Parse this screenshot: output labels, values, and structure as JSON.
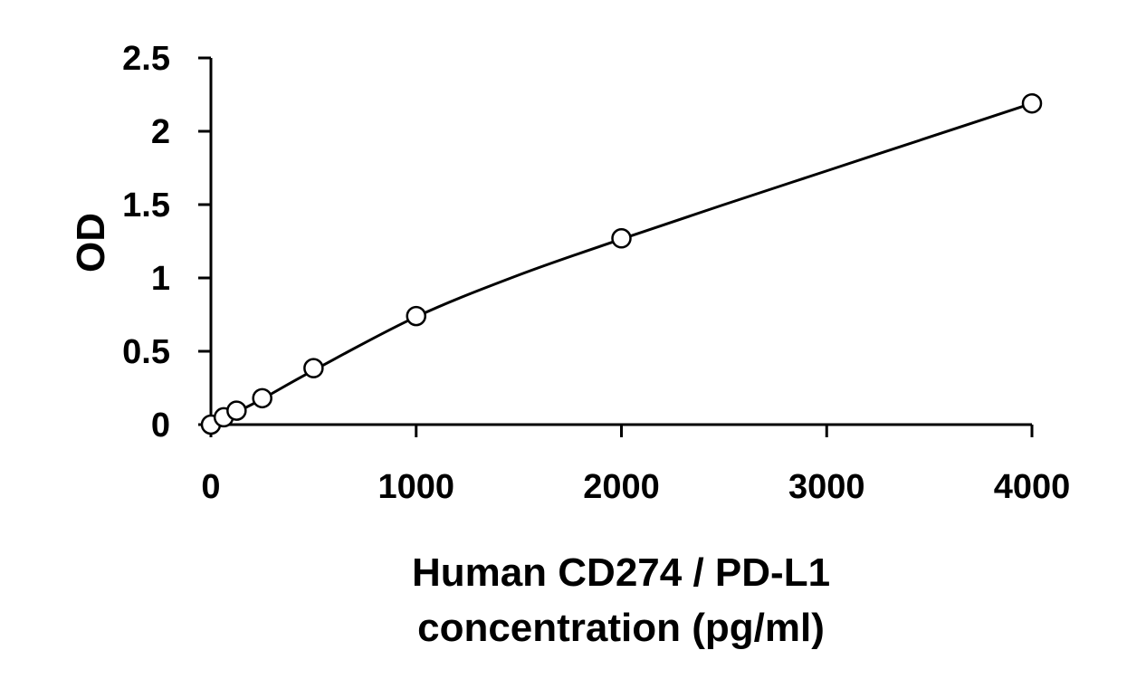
{
  "chart_data": {
    "type": "scatter",
    "title": "",
    "xlabel_lines": [
      "Human CD274 / PD-L1",
      "concentration (pg/ml)"
    ],
    "ylabel": "OD",
    "xlim": [
      0,
      4000
    ],
    "ylim": [
      0,
      2.5
    ],
    "xticks": [
      0,
      1000,
      2000,
      3000,
      4000
    ],
    "xtick_labels": [
      "0",
      "1000",
      "2000",
      "3000",
      "4000"
    ],
    "yticks": [
      0,
      0.5,
      1,
      1.5,
      2,
      2.5
    ],
    "ytick_labels": [
      "0",
      "0.5",
      "1",
      "1.5",
      "2",
      "2.5"
    ],
    "grid": false,
    "legend": "none",
    "series": [
      {
        "marker": "open-circle",
        "x": [
          0,
          62.5,
          125,
          250,
          500,
          1000,
          2000,
          4000
        ],
        "y": [
          0.0,
          0.05,
          0.095,
          0.18,
          0.385,
          0.74,
          1.27,
          2.19
        ]
      }
    ],
    "fit_curve": {
      "style": "smooth-line",
      "x": [
        0,
        62.5,
        125,
        250,
        500,
        1000,
        1500,
        2000,
        2500,
        3000,
        3500,
        4000
      ],
      "y": [
        0.0,
        0.04,
        0.085,
        0.175,
        0.37,
        0.735,
        1.02,
        1.265,
        1.5,
        1.73,
        1.96,
        2.19
      ]
    },
    "colors": {
      "axis": "#000000",
      "marker_stroke": "#000000",
      "marker_fill": "#ffffff",
      "line": "#000000"
    }
  }
}
